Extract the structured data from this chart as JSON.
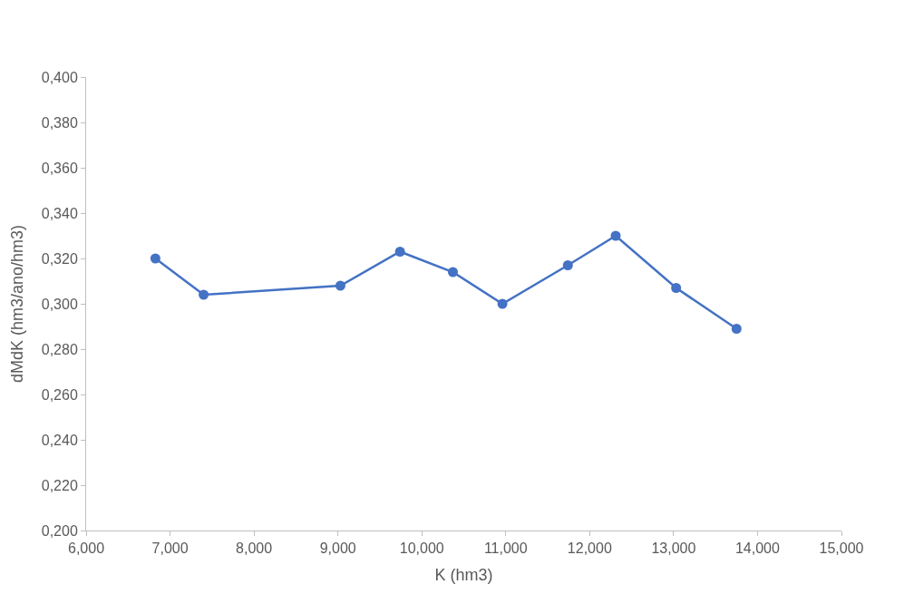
{
  "chart_data": {
    "type": "line",
    "xlabel": "K (hm3)",
    "ylabel": "dMdK (hm3/ano/hm3)",
    "x": [
      6.825,
      7.4,
      9.03,
      9.74,
      10.37,
      10.96,
      11.74,
      12.31,
      13.03,
      13.75
    ],
    "series": [
      {
        "color": "#4472c4",
        "values": [
          0.32,
          0.304,
          0.308,
          0.323,
          0.314,
          0.3,
          0.317,
          0.33,
          0.307,
          0.289
        ]
      }
    ],
    "xlim": [
      6,
      15
    ],
    "xticks": [
      {
        "value": 6,
        "label": "6,000"
      },
      {
        "value": 7,
        "label": "7,000"
      },
      {
        "value": 8,
        "label": "8,000"
      },
      {
        "value": 9,
        "label": "9,000"
      },
      {
        "value": 10,
        "label": "10,000"
      },
      {
        "value": 11,
        "label": "11,000"
      },
      {
        "value": 12,
        "label": "12,000"
      },
      {
        "value": 13,
        "label": "13,000"
      },
      {
        "value": 14,
        "label": "14,000"
      },
      {
        "value": 15,
        "label": "15,000"
      }
    ],
    "ylim": [
      0.2,
      0.4
    ],
    "yticks": [
      {
        "value": 0.2,
        "label": "0,200"
      },
      {
        "value": 0.22,
        "label": "0,220"
      },
      {
        "value": 0.24,
        "label": "0,240"
      },
      {
        "value": 0.26,
        "label": "0,260"
      },
      {
        "value": 0.28,
        "label": "0,280"
      },
      {
        "value": 0.3,
        "label": "0,300"
      },
      {
        "value": 0.32,
        "label": "0,320"
      },
      {
        "value": 0.34,
        "label": "0,340"
      },
      {
        "value": 0.36,
        "label": "0,360"
      },
      {
        "value": 0.38,
        "label": "0,380"
      },
      {
        "value": 0.4,
        "label": "0,400"
      }
    ],
    "marker": "circle",
    "line_style": "solid"
  }
}
